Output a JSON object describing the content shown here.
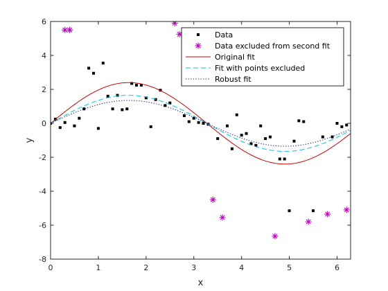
{
  "chart_data": {
    "type": "scatter",
    "title": "",
    "xlabel": "x",
    "ylabel": "y",
    "xlim": [
      0,
      6.2832
    ],
    "ylim": [
      -8,
      6
    ],
    "xticks": [
      0,
      1,
      2,
      3,
      4,
      5,
      6
    ],
    "yticks": [
      -8,
      -6,
      -4,
      -2,
      0,
      2,
      4,
      6
    ],
    "xtick_labels": [
      "0",
      "1",
      "2",
      "3",
      "4",
      "5",
      "6"
    ],
    "ytick_labels": [
      "-8",
      "-6",
      "-4",
      "-2",
      "0",
      "2",
      "4",
      "6"
    ],
    "grid": false,
    "legend_position": "top-right",
    "legend": [
      {
        "label": "Data",
        "style": "marker-dot",
        "color": "#000000"
      },
      {
        "label": "Data excluded from second fit",
        "style": "marker-star",
        "color": "#c000c0"
      },
      {
        "label": "Original fit",
        "style": "solid",
        "color": "#d40000"
      },
      {
        "label": "Fit with points excluded",
        "style": "dashed",
        "color": "#00c8e0"
      },
      {
        "label": "Robust fit",
        "style": "dotted",
        "color": "#000080"
      }
    ],
    "series": [
      {
        "kind": "points",
        "marker": "dot",
        "color": "#000000",
        "x": [
          0,
          0.1,
          0.2,
          0.3,
          0.5,
          0.6,
          0.7,
          0.8,
          0.9,
          1.0,
          1.1,
          1.2,
          1.3,
          1.4,
          1.5,
          1.6,
          1.7,
          1.8,
          1.9,
          2.0,
          2.1,
          2.2,
          2.3,
          2.4,
          2.5,
          2.8,
          2.9,
          3.0,
          3.1,
          3.2,
          3.3,
          3.5,
          3.7,
          3.8,
          3.9,
          4.0,
          4.1,
          4.2,
          4.3,
          4.4,
          4.5,
          4.6,
          4.8,
          4.9,
          5.0,
          5.1,
          5.2,
          5.3,
          5.5,
          5.7,
          5.9,
          6.0,
          6.1,
          6.2
        ],
        "y": [
          0.0,
          0.25,
          -0.25,
          0.05,
          -0.15,
          0.3,
          0.85,
          3.25,
          2.95,
          -0.3,
          3.55,
          1.6,
          0.85,
          1.65,
          0.8,
          0.85,
          2.35,
          2.25,
          2.25,
          1.5,
          -0.2,
          1.4,
          1.95,
          1.05,
          1.2,
          0.45,
          0.1,
          0.3,
          0.05,
          0.0,
          -0.05,
          -0.9,
          -0.15,
          -1.5,
          0.5,
          -0.7,
          -0.6,
          -1.2,
          -1.3,
          -0.15,
          -0.9,
          -0.8,
          -2.1,
          -2.1,
          -5.15,
          -1.05,
          0.15,
          0.1,
          -5.15,
          -0.8,
          -0.8,
          0.0,
          -0.2,
          -0.1
        ]
      },
      {
        "kind": "points",
        "marker": "star",
        "color": "#c000c0",
        "x": [
          0.3,
          0.4,
          2.6,
          2.7,
          3.4,
          3.6,
          4.7,
          5.4,
          5.8,
          6.2
        ],
        "y": [
          5.5,
          5.5,
          5.9,
          5.25,
          -4.5,
          -5.55,
          -6.65,
          -5.8,
          -5.35,
          -5.1
        ]
      },
      {
        "kind": "curve",
        "style": "solid",
        "color": "#d40000",
        "amplitude": 2.4,
        "frequency": 0.96
      },
      {
        "kind": "curve",
        "style": "dashed",
        "color": "#00c8e0",
        "amplitude": 1.65,
        "frequency": 0.96
      },
      {
        "kind": "curve",
        "style": "dotted",
        "color": "#000080",
        "amplitude": 1.35,
        "frequency": 0.96
      }
    ]
  }
}
